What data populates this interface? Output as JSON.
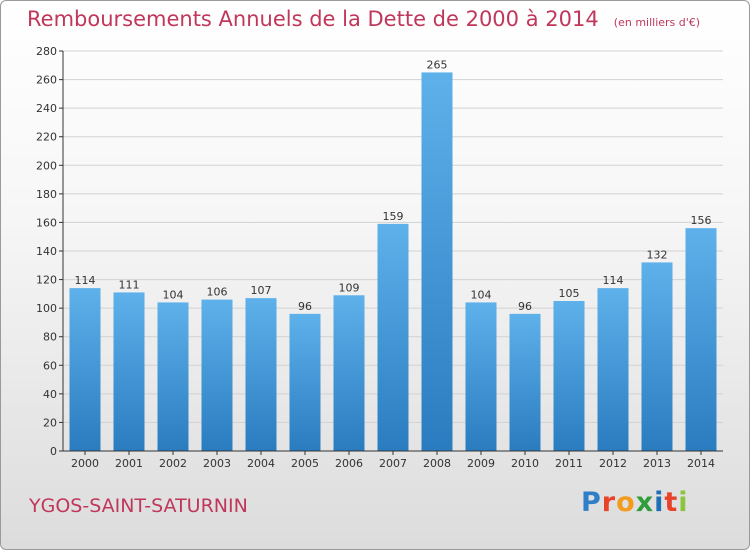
{
  "header": {
    "title": "Remboursements Annuels de la Dette de 2000 à 2014",
    "subtitle": "(en milliers d'€)"
  },
  "footer": {
    "commune": "YGOS-SAINT-SATURNIN",
    "logo_letters": [
      {
        "char": "P",
        "color": "#2f7fc8"
      },
      {
        "char": "r",
        "color": "#e8422a"
      },
      {
        "char": "o",
        "color": "#f39b1c"
      },
      {
        "char": "x",
        "color": "#2f9e3a"
      },
      {
        "char": "i",
        "color": "#1f6fb8"
      },
      {
        "char": "t",
        "color": "#e8422a"
      },
      {
        "char": "i",
        "color": "#8cc43e"
      }
    ]
  },
  "colors": {
    "title": "#c0375b",
    "bar_top": "#5eb1ea",
    "bar_bottom": "#2a7cc0",
    "grid": "#d2d2d2",
    "axis": "#333333"
  },
  "chart_data": {
    "type": "bar",
    "categories": [
      "2000",
      "2001",
      "2002",
      "2003",
      "2004",
      "2005",
      "2006",
      "2007",
      "2008",
      "2009",
      "2010",
      "2011",
      "2012",
      "2013",
      "2014"
    ],
    "values": [
      114,
      111,
      104,
      106,
      107,
      96,
      109,
      159,
      265,
      104,
      96,
      105,
      114,
      132,
      156
    ],
    "title": "Remboursements Annuels de la Dette de 2000 à 2014",
    "ylim": [
      0,
      280
    ],
    "yticks": [
      0,
      20,
      40,
      60,
      80,
      100,
      120,
      140,
      160,
      180,
      200,
      220,
      240,
      260,
      280
    ],
    "grid": true,
    "data_labels": true
  }
}
